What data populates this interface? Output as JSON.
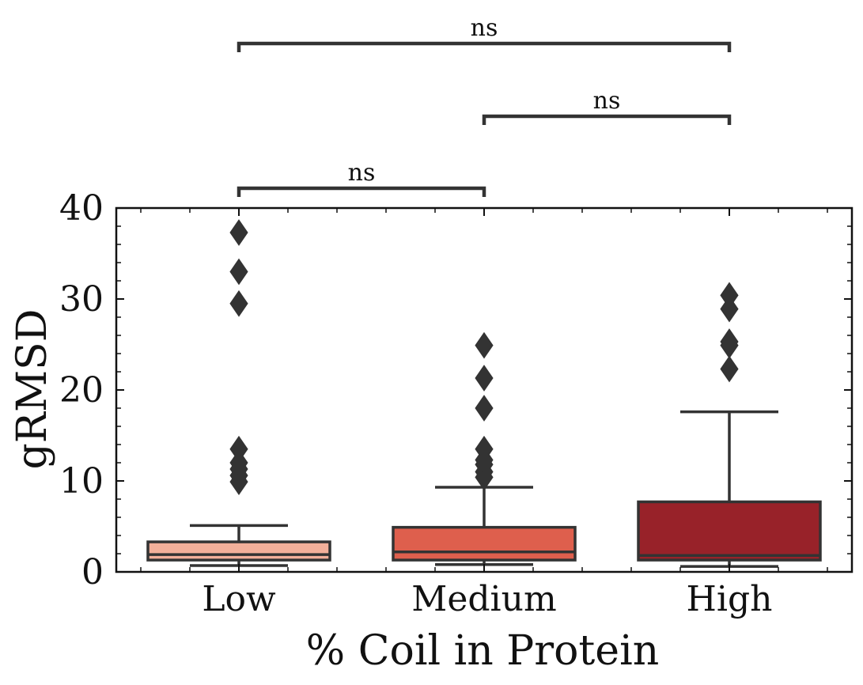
{
  "chart_data": {
    "type": "box",
    "xlabel": "% Coil in Protein",
    "ylabel": "gRMSD",
    "ylim": [
      0,
      40
    ],
    "yticks": [
      0,
      10,
      20,
      30,
      40
    ],
    "categories": [
      "Low",
      "Medium",
      "High"
    ],
    "colors": [
      "#f3b09a",
      "#de5f4d",
      "#982229"
    ],
    "edge_color": "#333333",
    "boxes": [
      {
        "category": "Low",
        "whisker_low": 0.7,
        "q1": 1.3,
        "median": 1.9,
        "q3": 3.3,
        "whisker_high": 5.1,
        "outliers": [
          9.9,
          10.6,
          11.3,
          12.0,
          13.5,
          29.5,
          33.0,
          37.3
        ]
      },
      {
        "category": "Medium",
        "whisker_low": 0.8,
        "q1": 1.3,
        "median": 2.2,
        "q3": 4.9,
        "whisker_high": 9.3,
        "outliers": [
          10.4,
          11.0,
          11.8,
          12.3,
          13.5,
          18.0,
          21.3,
          24.9
        ]
      },
      {
        "category": "High",
        "whisker_low": 0.6,
        "q1": 1.3,
        "median": 1.8,
        "q3": 7.7,
        "whisker_high": 17.6,
        "outliers": [
          22.3,
          24.9,
          25.3,
          28.9,
          30.4
        ]
      }
    ],
    "significance": [
      {
        "from": "Low",
        "to": "Medium",
        "label": "ns",
        "level": 1
      },
      {
        "from": "Medium",
        "to": "High",
        "label": "ns",
        "level": 2
      },
      {
        "from": "Low",
        "to": "High",
        "label": "ns",
        "level": 3
      }
    ]
  }
}
